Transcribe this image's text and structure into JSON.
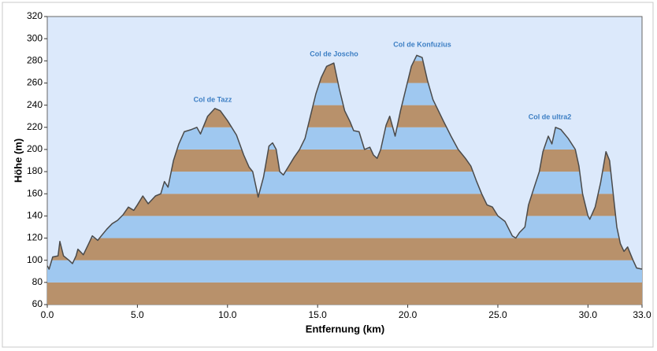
{
  "chart_data": {
    "type": "line",
    "x_label": "Entfernung  (km)",
    "y_label": "Höhe (m)",
    "annotations": [
      "Col de Tazz",
      "Col de Joscho",
      "Col de Konfuzius",
      "Col de ultra2"
    ],
    "xlim": [
      0,
      33
    ],
    "ylim": [
      60,
      320
    ],
    "xticks": [
      {
        "value": 0,
        "label": "0.0"
      },
      {
        "value": 5,
        "label": "5.0"
      },
      {
        "value": 10,
        "label": "10.0"
      },
      {
        "value": 15,
        "label": "15.0"
      },
      {
        "value": 20,
        "label": "20.0"
      },
      {
        "value": 25,
        "label": "25.0"
      },
      {
        "value": 30,
        "label": "30.0"
      },
      {
        "value": 33,
        "label": "33.0"
      }
    ],
    "yticks": [
      60,
      80,
      100,
      120,
      140,
      160,
      180,
      200,
      220,
      240,
      260,
      280,
      300,
      320
    ],
    "band_colors": [
      "#b8916b",
      "#9fc8f0"
    ],
    "background": "#dce9fb",
    "line_color": "#4a4a4a",
    "x": [
      0,
      0.1,
      0.3,
      0.6,
      0.7,
      0.9,
      1.2,
      1.4,
      1.6,
      1.7,
      2.0,
      2.3,
      2.5,
      2.8,
      3.0,
      3.3,
      3.6,
      3.9,
      4.2,
      4.5,
      4.8,
      5.0,
      5.3,
      5.6,
      6.0,
      6.3,
      6.5,
      6.7,
      7.0,
      7.3,
      7.6,
      8.0,
      8.3,
      8.5,
      8.9,
      9.3,
      9.6,
      10.0,
      10.5,
      10.9,
      11.2,
      11.4,
      11.6,
      11.7,
      12.0,
      12.3,
      12.5,
      12.7,
      12.9,
      13.1,
      13.4,
      13.7,
      14.0,
      14.3,
      14.6,
      14.9,
      15.2,
      15.5,
      15.9,
      16.2,
      16.5,
      16.8,
      17.0,
      17.3,
      17.6,
      17.9,
      18.1,
      18.3,
      18.5,
      18.8,
      19.0,
      19.3,
      19.6,
      19.9,
      20.2,
      20.5,
      20.8,
      21.1,
      21.4,
      21.7,
      22.0,
      22.4,
      22.8,
      23.2,
      23.5,
      23.8,
      24.1,
      24.4,
      24.7,
      25.0,
      25.4,
      25.8,
      26.0,
      26.2,
      26.5,
      26.7,
      27.0,
      27.3,
      27.5,
      27.8,
      28.0,
      28.2,
      28.5,
      28.9,
      29.3,
      29.5,
      29.7,
      30.0,
      30.1,
      30.4,
      30.7,
      31.0,
      31.2,
      31.4,
      31.6,
      31.8,
      32.0,
      32.2,
      32.5,
      32.7,
      33.0
    ],
    "values": [
      95,
      92,
      103,
      104,
      117,
      104,
      100,
      97,
      104,
      110,
      105,
      115,
      122,
      118,
      122,
      128,
      133,
      136,
      141,
      148,
      145,
      150,
      158,
      151,
      158,
      160,
      171,
      166,
      190,
      205,
      216,
      218,
      220,
      214,
      230,
      237,
      235,
      226,
      213,
      195,
      184,
      180,
      165,
      157,
      175,
      203,
      206,
      200,
      180,
      177,
      185,
      193,
      200,
      210,
      230,
      250,
      265,
      275,
      278,
      255,
      235,
      225,
      217,
      216,
      200,
      202,
      195,
      192,
      200,
      222,
      230,
      212,
      235,
      255,
      275,
      285,
      283,
      262,
      245,
      235,
      225,
      212,
      200,
      192,
      185,
      172,
      160,
      150,
      148,
      140,
      135,
      122,
      120,
      125,
      130,
      150,
      165,
      180,
      198,
      212,
      205,
      220,
      218,
      210,
      200,
      185,
      160,
      140,
      137,
      148,
      170,
      198,
      190,
      160,
      130,
      115,
      108,
      112,
      100,
      93,
      92
    ]
  }
}
